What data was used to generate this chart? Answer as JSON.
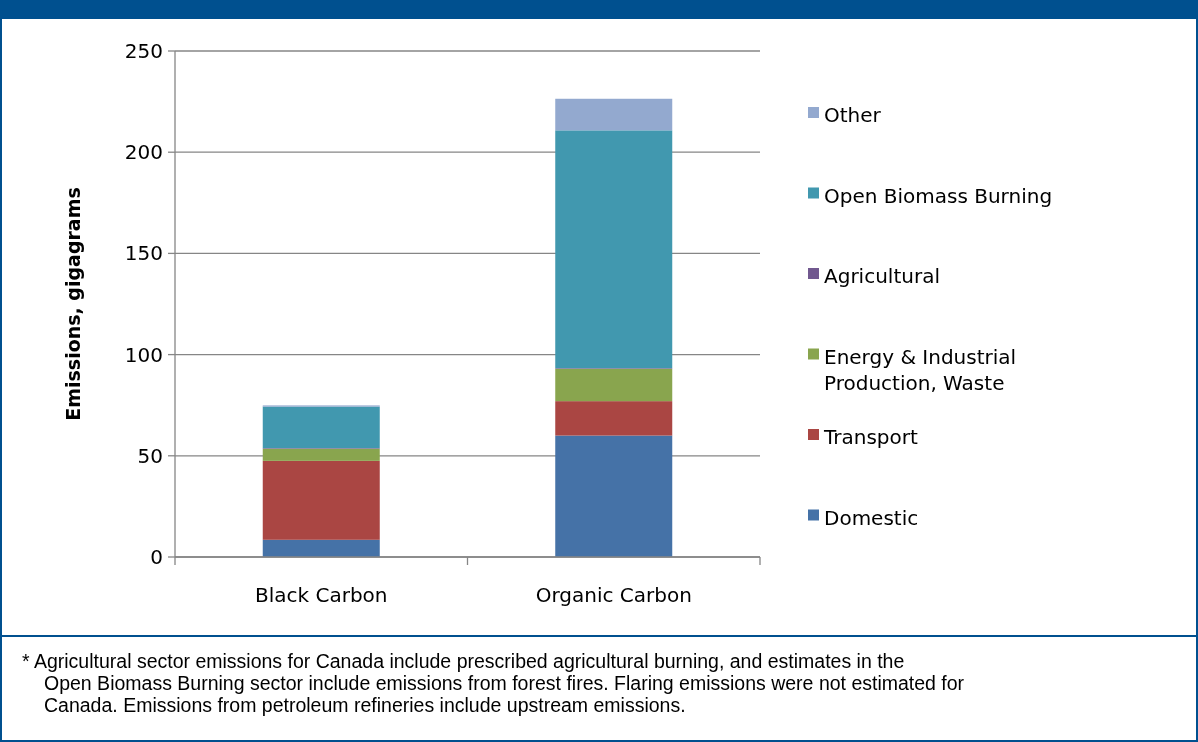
{
  "chart_data": {
    "type": "bar",
    "stacked": true,
    "ylabel": "Emissions, gigagrams",
    "categories": [
      "Black Carbon",
      "Organic Carbon"
    ],
    "series": [
      {
        "name": "Domestic",
        "color": "#4572a7",
        "values": [
          8.5,
          60
        ]
      },
      {
        "name": "Transport",
        "color": "#aa4643",
        "values": [
          39,
          17
        ]
      },
      {
        "name": "Energy & Industrial Production, Waste",
        "color": "#89a54e",
        "values": [
          6,
          16
        ]
      },
      {
        "name": "Agricultural",
        "color": "#71588f",
        "values": [
          0.3,
          0.3
        ]
      },
      {
        "name": "Open Biomass Burning",
        "color": "#4198af",
        "values": [
          20.5,
          117.5
        ]
      },
      {
        "name": "Other",
        "color": "#93a9cf",
        "values": [
          0.6,
          15.6
        ]
      }
    ],
    "ylim": [
      0,
      250
    ],
    "yticks": [
      0,
      50,
      100,
      150,
      200,
      250
    ],
    "grid": "y",
    "legend": "right",
    "annotations": [
      "* Agricultural sector emissions for Canada include prescribed agricultural burning, and estimates in the Open Biomass Burning sector include emissions from forest fires. Flaring emissions were not estimated for Canada. Emissions from petroleum refineries include upstream emissions."
    ]
  }
}
